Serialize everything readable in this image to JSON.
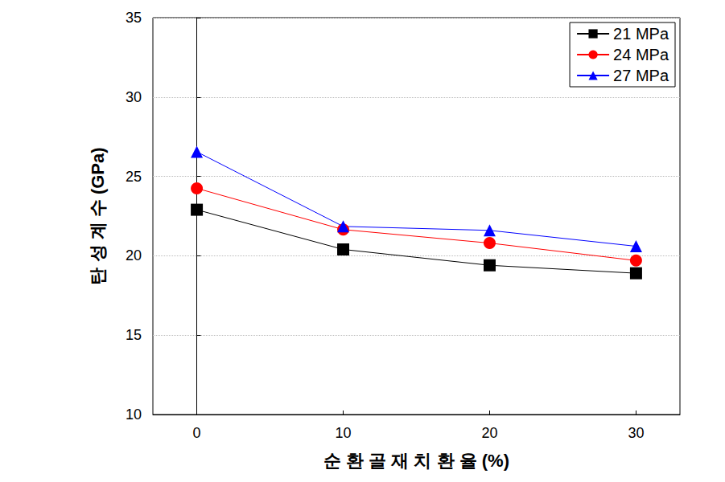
{
  "chart_data": {
    "type": "line",
    "x_label": "순 환 골 재 치 환 율 (%)",
    "y_label": "탄 성 계 수 (GPa)",
    "x": [
      0,
      10,
      20,
      30
    ],
    "series": [
      {
        "name": "21 MPa",
        "color": "#000000",
        "marker": "square",
        "values": [
          22.9,
          20.4,
          19.4,
          18.9
        ]
      },
      {
        "name": "24 MPa",
        "color": "#ff0000",
        "marker": "circle",
        "values": [
          24.25,
          21.65,
          20.8,
          19.7
        ]
      },
      {
        "name": "27 MPa",
        "color": "#0000ff",
        "marker": "triangle",
        "values": [
          26.55,
          21.85,
          21.6,
          20.6
        ]
      }
    ],
    "xlim": [
      -3,
      33
    ],
    "xticks": [
      0,
      10,
      20,
      30
    ],
    "ylim": [
      10,
      35
    ],
    "yticks": [
      10,
      15,
      20,
      25,
      30,
      35
    ],
    "grid": true,
    "legend": "upper right"
  }
}
